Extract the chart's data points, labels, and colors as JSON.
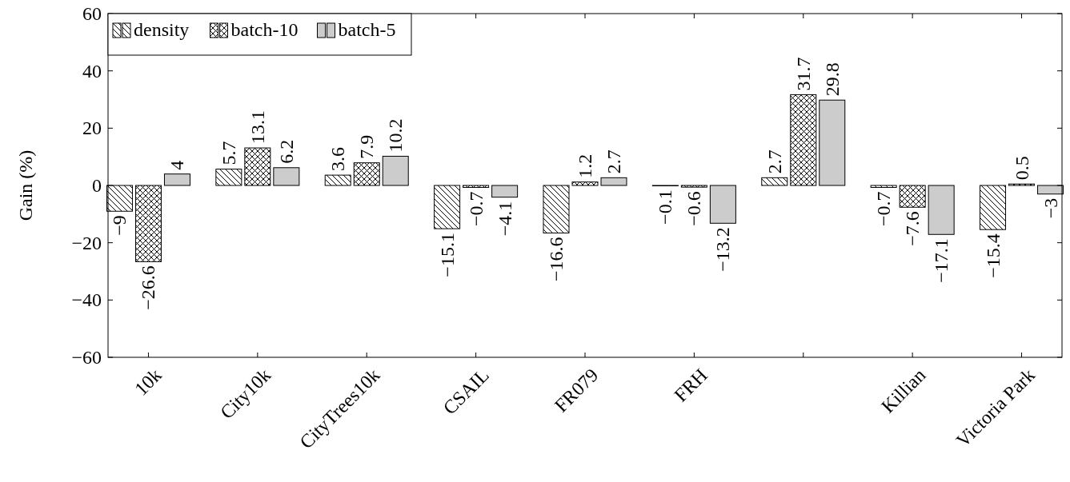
{
  "chart_data": {
    "type": "bar",
    "ylabel": "Gain (%)",
    "categories": [
      "10k",
      "City10k",
      "CityTrees10k",
      "CSAIL",
      "FR079",
      "FRH",
      null,
      "Killian",
      "Victoria Park"
    ],
    "series": [
      {
        "name": "density",
        "color": "#000000",
        "values": [
          -9,
          5.7,
          3.6,
          -15.1,
          -16.6,
          -0.1,
          2.7,
          -0.7,
          -15.4
        ]
      },
      {
        "name": "batch-10",
        "color": "#000000",
        "values": [
          -26.6,
          13.1,
          7.9,
          -0.7,
          1.2,
          -0.6,
          31.7,
          -7.6,
          0.5
        ]
      },
      {
        "name": "batch-5",
        "color": "#cccccc",
        "values": [
          4,
          6.2,
          10.2,
          -4.1,
          2.7,
          -13.2,
          29.8,
          -17.1,
          -3
        ]
      }
    ],
    "ylim": [
      -60,
      60
    ],
    "yticks": [
      -60,
      -40,
      -20,
      0,
      20,
      40,
      60
    ],
    "data_labels": true,
    "legend": "top left",
    "grid": false
  }
}
